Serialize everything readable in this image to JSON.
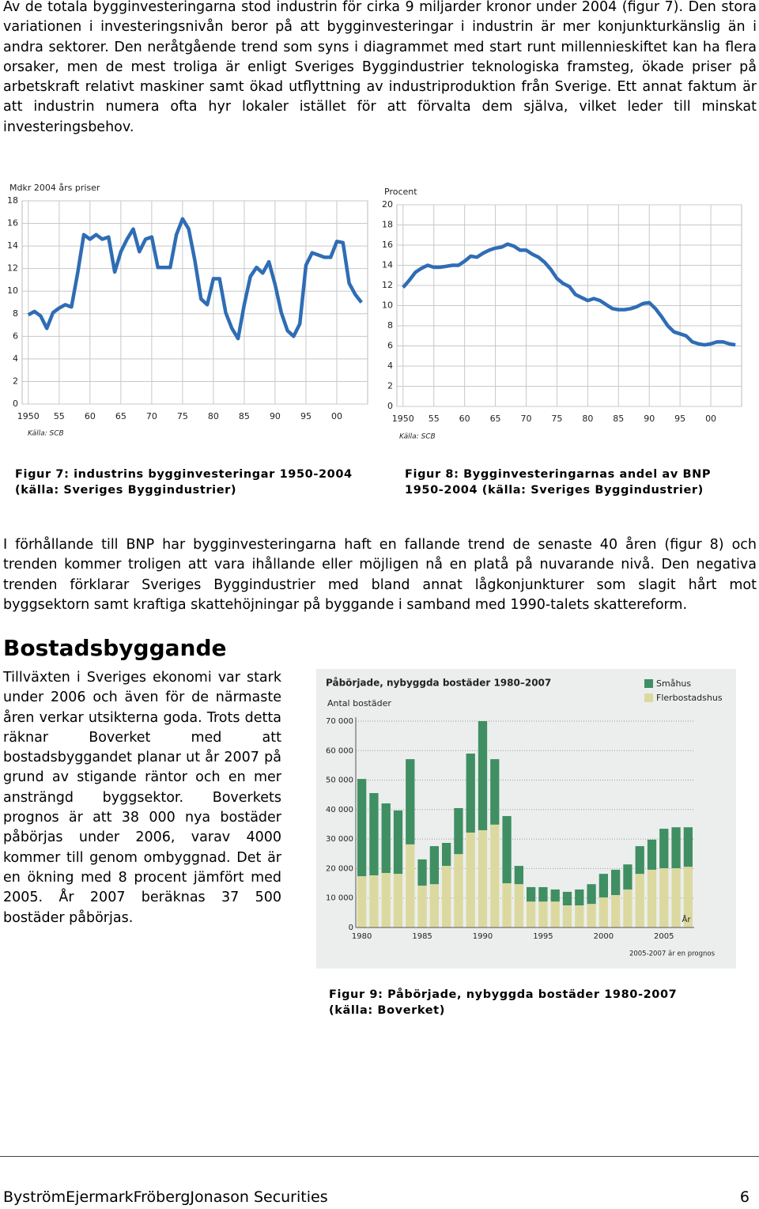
{
  "paragraphs": [
    "Av de totala bygginvesteringarna stod industrin för cirka 9 miljarder kronor under 2004 (figur 7). Den stora variationen i investeringsnivån beror på att bygginvesteringar i industrin är mer konjunkturkänslig än i andra sektorer. Den neråtgående trend som syns i diagrammet med start runt millennieskiftet kan ha flera orsaker, men de mest troliga är enligt Sveriges Byggindustrier teknologiska framsteg, ökade priser på arbetskraft relativt maskiner samt ökad utflyttning av industriproduktion från Sverige. Ett annat faktum är att industrin numera ofta hyr lokaler istället för att förvalta dem själva, vilket leder till minskat investeringsbehov.",
    "I förhållande till BNP har bygginvesteringarna haft en fallande trend de senaste 40 åren (figur 8) och trenden kommer troligen att vara ihållande eller möjligen nå en platå på nuvarande nivå. Den negativa trenden förklarar Sveriges Byggindustrier med bland annat lågkonjunkturer som slagit hårt mot byggsektorn samt kraftiga skattehöjningar på byggande i samband med 1990-talets skattereform.",
    "Tillväxten i Sveriges ekonomi var stark under 2006 och även för de närmaste åren verkar utsikterna goda. Trots detta räknar Boverket med att bostadsbyggandet planar ut år 2007 på grund av stigande räntor och en mer ansträngd byggsektor. Boverkets prognos är att 38 000 nya bostäder påbörjas under 2006, varav 4000 kommer till genom ombyggnad. Det är en ökning med 8 procent jämfört med 2005. År 2007 beräknas 37 500 bostäder påbörjas."
  ],
  "heading": "Bostadsbyggande",
  "captions": [
    "Figur 7: industrins bygginvesteringar 1950-2004 (källa: Sveriges Byggindustrier)",
    "Figur 8: Bygginvesteringarnas andel av BNP 1950-2004 (källa: Sveriges Byggindustrier)",
    "Figur 9: Påbörjade, nybyggda bostäder 1980-2007 (källa: Boverket)"
  ],
  "footer": {
    "left": "ByströmEjermarkFröbergJonason Securities",
    "page": "6"
  },
  "chart_data": [
    {
      "type": "line",
      "ylabel": "Mdkr 2004 års priser",
      "source": "Källa: SCB",
      "color": "#2f6db5",
      "grid": true,
      "x": [
        1950,
        1951,
        1952,
        1953,
        1954,
        1955,
        1956,
        1957,
        1958,
        1959,
        1960,
        1961,
        1962,
        1963,
        1964,
        1965,
        1966,
        1967,
        1968,
        1969,
        1970,
        1971,
        1972,
        1973,
        1974,
        1975,
        1976,
        1977,
        1978,
        1979,
        1980,
        1981,
        1982,
        1983,
        1984,
        1985,
        1986,
        1987,
        1988,
        1989,
        1990,
        1991,
        1992,
        1993,
        1994,
        1995,
        1996,
        1997,
        1998,
        1999,
        2000,
        2001,
        2002,
        2003,
        2004
      ],
      "values": [
        7.9,
        8.2,
        7.8,
        6.7,
        8.1,
        8.5,
        8.8,
        8.6,
        11.6,
        15.0,
        14.6,
        15.0,
        14.6,
        14.8,
        11.7,
        13.5,
        14.6,
        15.5,
        13.5,
        14.6,
        14.8,
        12.1,
        12.1,
        12.1,
        15.0,
        16.4,
        15.5,
        12.7,
        9.3,
        8.8,
        11.1,
        11.1,
        8.1,
        6.7,
        5.8,
        8.8,
        11.3,
        12.1,
        11.6,
        12.6,
        10.6,
        8.1,
        6.5,
        6.0,
        7.1,
        12.3,
        13.4,
        13.2,
        13.0,
        13.0,
        14.4,
        14.3,
        10.7,
        9.7,
        9.0
      ],
      "xlim": [
        1949,
        2005
      ],
      "xticks": [
        1950,
        {
          "value": 1955,
          "label": "55"
        },
        {
          "value": 1960,
          "label": "60"
        },
        {
          "value": 1965,
          "label": "65"
        },
        {
          "value": 1970,
          "label": "70"
        },
        {
          "value": 1975,
          "label": "75"
        },
        {
          "value": 1980,
          "label": "80"
        },
        {
          "value": 1985,
          "label": "85"
        },
        {
          "value": 1990,
          "label": "90"
        },
        {
          "value": 1995,
          "label": "95"
        },
        {
          "value": 2000,
          "label": "00"
        }
      ],
      "ylim": [
        0,
        18
      ],
      "yticks": [
        0,
        2,
        4,
        6,
        8,
        10,
        12,
        14,
        16,
        18
      ]
    },
    {
      "type": "line",
      "ylabel": "Procent",
      "source": "Källa: SCB",
      "color": "#2f6db5",
      "grid": true,
      "x": [
        1950,
        1951,
        1952,
        1953,
        1954,
        1955,
        1956,
        1957,
        1958,
        1959,
        1960,
        1961,
        1962,
        1963,
        1964,
        1965,
        1966,
        1967,
        1968,
        1969,
        1970,
        1971,
        1972,
        1973,
        1974,
        1975,
        1976,
        1977,
        1978,
        1979,
        1980,
        1981,
        1982,
        1983,
        1984,
        1985,
        1986,
        1987,
        1988,
        1989,
        1990,
        1991,
        1992,
        1993,
        1994,
        1995,
        1996,
        1997,
        1998,
        1999,
        2000,
        2001,
        2002,
        2003,
        2004
      ],
      "values": [
        11.8,
        12.5,
        13.3,
        13.7,
        14.0,
        13.8,
        13.8,
        13.9,
        14.0,
        14.0,
        14.4,
        14.9,
        14.8,
        15.2,
        15.5,
        15.7,
        15.8,
        16.1,
        15.9,
        15.5,
        15.5,
        15.1,
        14.8,
        14.3,
        13.6,
        12.7,
        12.2,
        11.9,
        11.1,
        10.8,
        10.5,
        10.7,
        10.5,
        10.1,
        9.7,
        9.6,
        9.6,
        9.7,
        9.9,
        10.2,
        10.3,
        9.7,
        8.9,
        8.0,
        7.4,
        7.2,
        7.0,
        6.4,
        6.2,
        6.1,
        6.2,
        6.4,
        6.4,
        6.2,
        6.1
      ],
      "xlim": [
        1949,
        2005
      ],
      "xticks": [
        1950,
        {
          "value": 1955,
          "label": "55"
        },
        {
          "value": 1960,
          "label": "60"
        },
        {
          "value": 1965,
          "label": "65"
        },
        {
          "value": 1970,
          "label": "70"
        },
        {
          "value": 1975,
          "label": "75"
        },
        {
          "value": 1980,
          "label": "80"
        },
        {
          "value": 1985,
          "label": "85"
        },
        {
          "value": 1990,
          "label": "90"
        },
        {
          "value": 1995,
          "label": "95"
        },
        {
          "value": 2000,
          "label": "00"
        }
      ],
      "ylim": [
        0,
        20
      ],
      "yticks": [
        0,
        2,
        4,
        6,
        8,
        10,
        12,
        14,
        16,
        18,
        20
      ]
    },
    {
      "type": "stacked_bar",
      "title": "Påbörjade, nybyggda bostäder 1980–2007",
      "ylabel": "Antal bostäder",
      "xlabel": "År",
      "note": "2005-2007 är en prognos",
      "grid": true,
      "categories": [
        "1980",
        null,
        null,
        null,
        null,
        "1985",
        null,
        null,
        null,
        null,
        "1990",
        null,
        null,
        null,
        null,
        "1995",
        null,
        null,
        null,
        null,
        "2000",
        null,
        null,
        null,
        null,
        "2005",
        null,
        null
      ],
      "series": [
        {
          "name": "Småhus",
          "color": "#3f8f63",
          "values": [
            33000,
            27900,
            23600,
            21500,
            28900,
            8900,
            12900,
            7800,
            15600,
            26800,
            37000,
            22200,
            22800,
            6200,
            4900,
            4900,
            4100,
            4600,
            5400,
            6700,
            8000,
            8600,
            8500,
            9400,
            10200,
            13400,
            13900,
            13400
          ]
        },
        {
          "name": "Flerbostadshus",
          "color": "#dcd9a0",
          "values": [
            17400,
            17700,
            18500,
            18200,
            28200,
            14200,
            14700,
            20900,
            24900,
            32200,
            33000,
            34900,
            15000,
            14700,
            8800,
            8800,
            8800,
            7500,
            7500,
            8000,
            10200,
            11000,
            12900,
            18200,
            19600,
            20100,
            20100,
            20600
          ]
        }
      ],
      "ylim": [
        0,
        70000
      ],
      "yticks": [
        0,
        {
          "value": 10000,
          "label": "10 000"
        },
        {
          "value": 20000,
          "label": "20 000"
        },
        {
          "value": 30000,
          "label": "30 000"
        },
        {
          "value": 40000,
          "label": "40 000"
        },
        {
          "value": 50000,
          "label": "50 000"
        },
        {
          "value": 60000,
          "label": "60 000"
        },
        {
          "value": 70000,
          "label": "70 000"
        }
      ]
    }
  ]
}
